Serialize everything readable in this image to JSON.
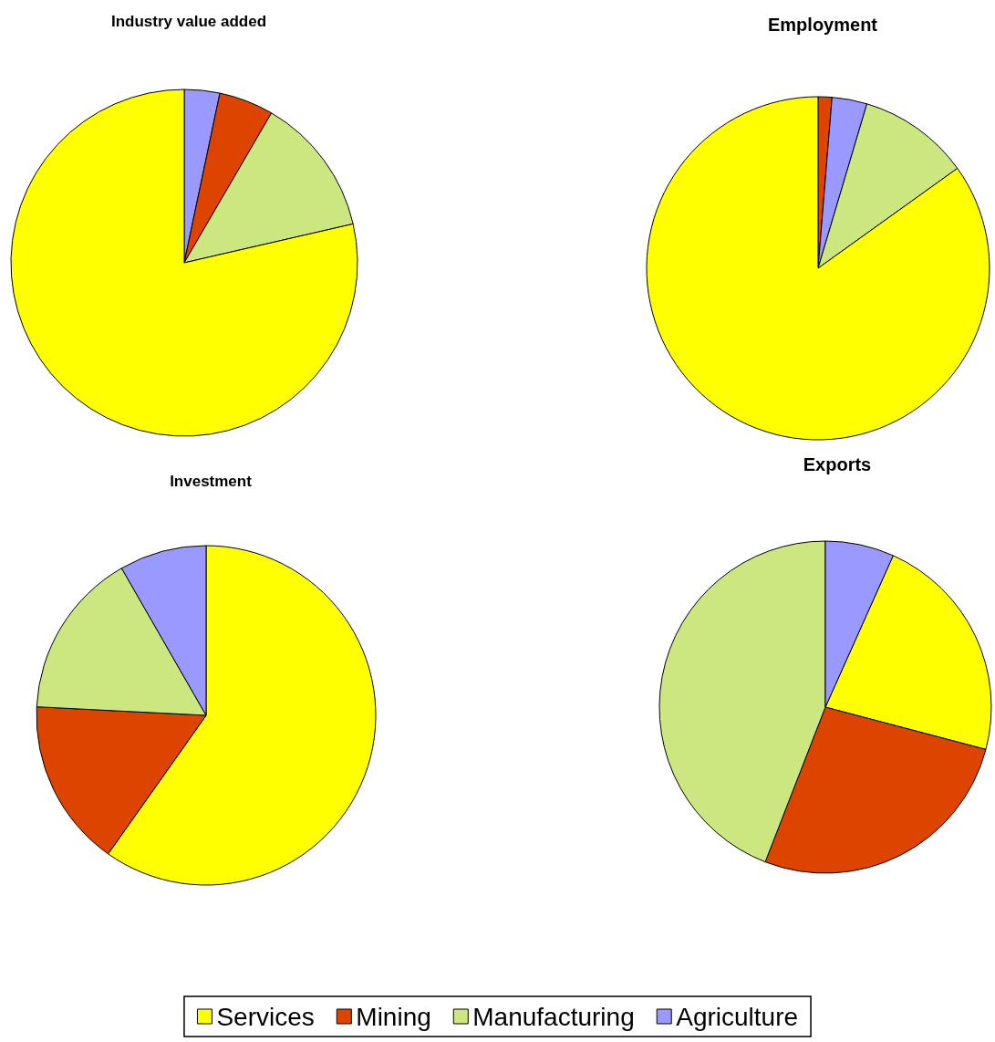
{
  "chart_data": [
    {
      "type": "pie",
      "title": "Industry value added",
      "categories": [
        null,
        null,
        null,
        null
      ],
      "values": [
        3.3,
        5.1,
        13,
        78.6
      ],
      "colors": [
        "#9999ff",
        "#dd4400",
        "#cce680",
        "#ffff00"
      ]
    },
    {
      "type": "pie",
      "title": "Employment",
      "categories": [
        null,
        null,
        null,
        null
      ],
      "values": [
        1.3,
        3.3,
        10.5,
        84.9
      ],
      "colors": [
        "#dd4400",
        "#9999ff",
        "#cce680",
        "#ffff00"
      ]
    },
    {
      "type": "pie",
      "title": "Investment",
      "categories": [
        null,
        null,
        null,
        null
      ],
      "values": [
        59.8,
        16,
        15.9,
        8.3
      ],
      "colors": [
        "#ffff00",
        "#dd4400",
        "#cce680",
        "#9999ff"
      ]
    },
    {
      "type": "pie",
      "title": "Exports",
      "categories": [
        "Services",
        "Mining",
        "Manufacturing",
        "Agriculture"
      ],
      "values": [
        22.4,
        26.8,
        44.1,
        6.7
      ],
      "colors": [
        "#ffff00",
        "#dd4400",
        "#cce680",
        "#9999ff"
      ],
      "legend": "bottom"
    }
  ]
}
